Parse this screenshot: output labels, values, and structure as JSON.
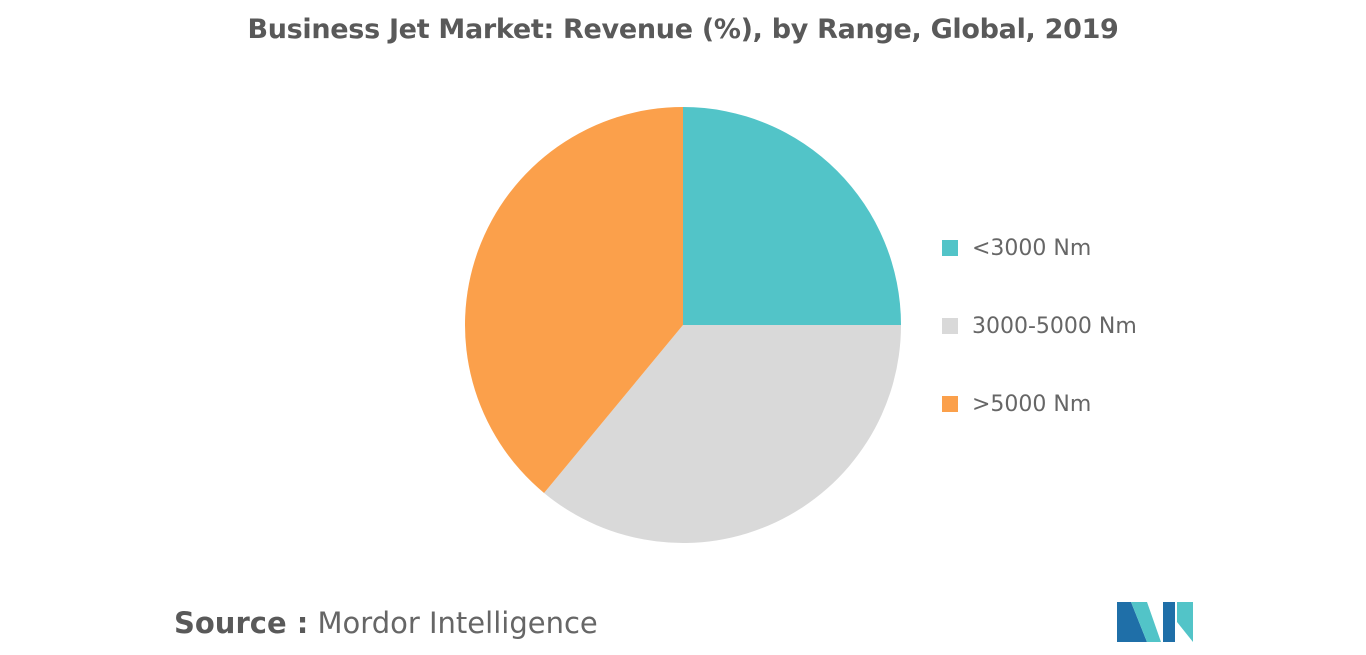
{
  "chart_data": {
    "type": "pie",
    "title": "Business Jet Market: Revenue (%), by Range, Global, 2019",
    "categories": [
      "<3000 Nm",
      "3000-5000 Nm",
      ">5000 Nm"
    ],
    "values": [
      25,
      36,
      39
    ],
    "colors": [
      "#52c4c8",
      "#d9d9d9",
      "#fba04b"
    ],
    "legend_position": "right"
  },
  "source": {
    "key": "Source :",
    "value": "Mordor Intelligence"
  },
  "logo": {
    "icon": "mordor-intelligence-logo-icon",
    "colors": [
      "#1f6fa8",
      "#52c4c8"
    ]
  }
}
